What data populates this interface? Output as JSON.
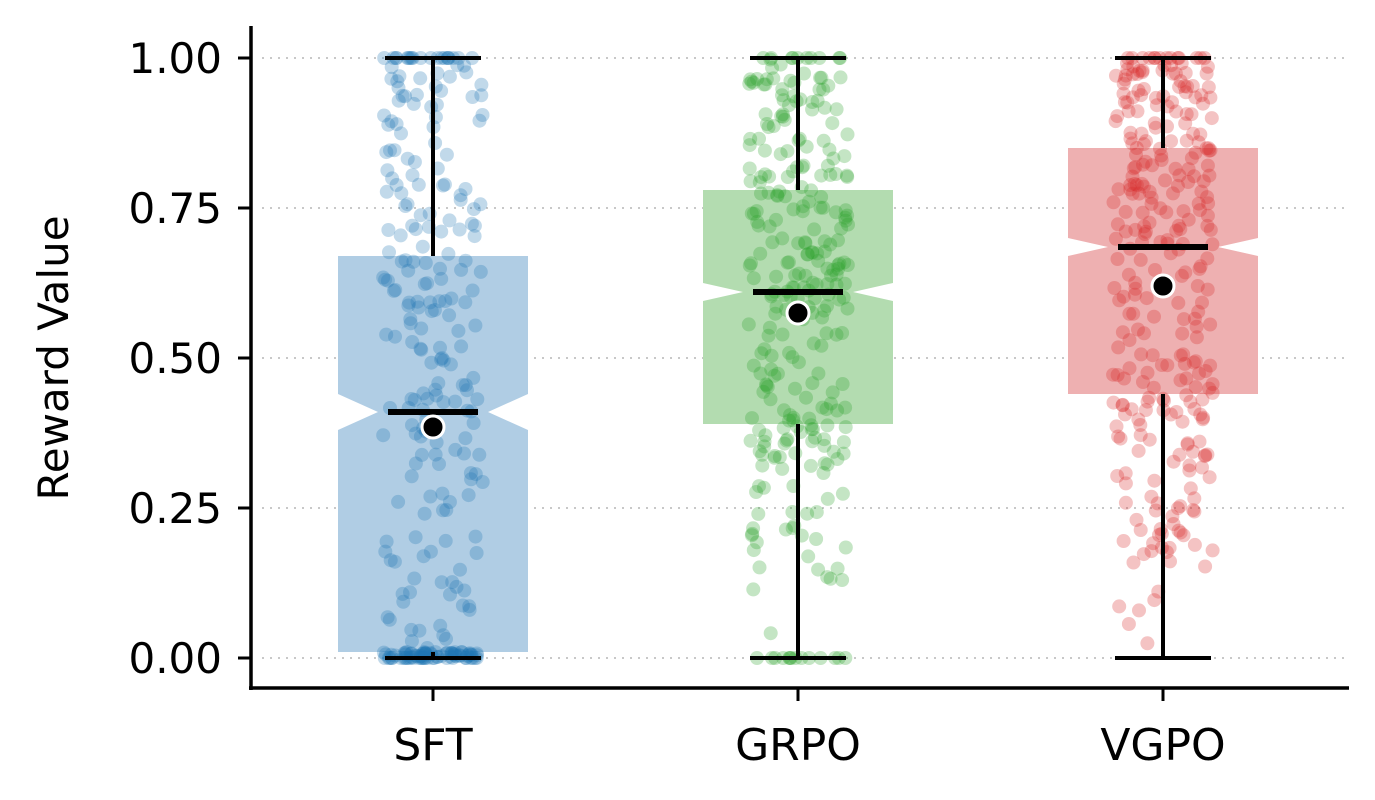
{
  "chart_data": {
    "type": "box",
    "title": "",
    "xlabel": "",
    "ylabel": "Reward Value",
    "ylim": [
      -0.05,
      1.05
    ],
    "yticks": [
      0.0,
      0.25,
      0.5,
      0.75,
      1.0
    ],
    "ytick_labels": [
      "0.00",
      "0.25",
      "0.50",
      "0.75",
      "1.00"
    ],
    "grid": {
      "axis": "y",
      "style": "dotted",
      "color": "#cccccc"
    },
    "notched": true,
    "categories": [
      "SFT",
      "GRPO",
      "VGPO"
    ],
    "series": [
      {
        "name": "SFT",
        "color": "#1f77b4",
        "box_color": "#b0cde4",
        "q1": 0.01,
        "median": 0.41,
        "q3": 0.67,
        "mean": 0.385,
        "whisker_low": 0.0,
        "whisker_high": 1.0,
        "notch_low": 0.38,
        "notch_high": 0.44
      },
      {
        "name": "GRPO",
        "color": "#2ca02c",
        "box_color": "#b3dcb0",
        "q1": 0.39,
        "median": 0.61,
        "q3": 0.78,
        "mean": 0.575,
        "whisker_low": 0.0,
        "whisker_high": 1.0,
        "notch_low": 0.595,
        "notch_high": 0.625
      },
      {
        "name": "VGPO",
        "color": "#d62728",
        "box_color": "#eeb0b1",
        "q1": 0.44,
        "median": 0.685,
        "q3": 0.85,
        "mean": 0.62,
        "whisker_low": 0.0,
        "whisker_high": 1.0,
        "notch_low": 0.67,
        "notch_high": 0.7
      }
    ]
  }
}
